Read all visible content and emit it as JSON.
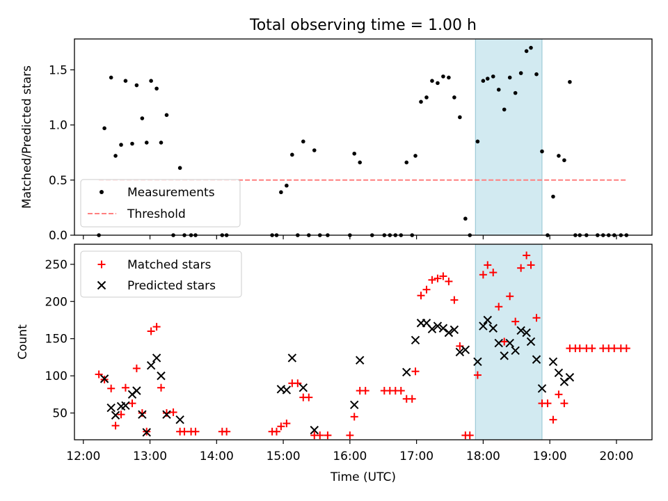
{
  "title": "Total observing time = 1.00 h",
  "colors": {
    "measurements": "#000000",
    "threshold": "#ff7f7f",
    "matched": "#ff0000",
    "predicted": "#000000",
    "window": "#add8e6"
  },
  "chart_data": [
    {
      "type": "scatter",
      "ylabel": "Matched/Predicted stars",
      "xlim": [
        "11:52",
        "20:32"
      ],
      "ylim": [
        0,
        1.78
      ],
      "yticks": [
        0.0,
        0.5,
        1.0,
        1.5
      ],
      "ytick_labels": [
        "0.0",
        "0.5",
        "1.0",
        "1.5"
      ],
      "highlight_span": [
        "17:53",
        "18:53"
      ],
      "legend": {
        "location": "lower-left",
        "entries": [
          "Measurements",
          "Threshold"
        ]
      },
      "series": [
        {
          "name": "Measurements",
          "marker": "dot",
          "points": [
            [
              "12:14",
              0.0
            ],
            [
              "12:19",
              0.97
            ],
            [
              "12:25",
              1.43
            ],
            [
              "12:29",
              0.72
            ],
            [
              "12:34",
              0.82
            ],
            [
              "12:38",
              1.4
            ],
            [
              "12:44",
              0.83
            ],
            [
              "12:48",
              1.36
            ],
            [
              "12:53",
              1.06
            ],
            [
              "12:57",
              0.84
            ],
            [
              "13:01",
              1.4
            ],
            [
              "13:06",
              1.33
            ],
            [
              "13:10",
              0.84
            ],
            [
              "13:15",
              1.09
            ],
            [
              "13:21",
              0.0
            ],
            [
              "13:27",
              0.61
            ],
            [
              "13:31",
              0.0
            ],
            [
              "13:37",
              0.0
            ],
            [
              "13:41",
              0.0
            ],
            [
              "14:05",
              0.0
            ],
            [
              "14:09",
              0.0
            ],
            [
              "14:50",
              0.0
            ],
            [
              "14:54",
              0.0
            ],
            [
              "14:58",
              0.39
            ],
            [
              "15:03",
              0.45
            ],
            [
              "15:08",
              0.73
            ],
            [
              "15:13",
              0.0
            ],
            [
              "15:18",
              0.85
            ],
            [
              "15:23",
              0.0
            ],
            [
              "15:28",
              0.77
            ],
            [
              "15:33",
              0.0
            ],
            [
              "15:40",
              0.0
            ],
            [
              "16:00",
              0.0
            ],
            [
              "16:04",
              0.74
            ],
            [
              "16:09",
              0.66
            ],
            [
              "16:20",
              0.0
            ],
            [
              "16:31",
              0.0
            ],
            [
              "16:36",
              0.0
            ],
            [
              "16:41",
              0.0
            ],
            [
              "16:46",
              0.0
            ],
            [
              "16:51",
              0.66
            ],
            [
              "16:56",
              0.0
            ],
            [
              "16:59",
              0.72
            ],
            [
              "17:04",
              1.21
            ],
            [
              "17:09",
              1.25
            ],
            [
              "17:14",
              1.4
            ],
            [
              "17:19",
              1.38
            ],
            [
              "17:24",
              1.44
            ],
            [
              "17:29",
              1.43
            ],
            [
              "17:34",
              1.25
            ],
            [
              "17:39",
              1.07
            ],
            [
              "17:44",
              0.15
            ],
            [
              "17:48",
              0.0
            ],
            [
              "17:55",
              0.85
            ],
            [
              "18:00",
              1.4
            ],
            [
              "18:04",
              1.42
            ],
            [
              "18:09",
              1.44
            ],
            [
              "18:14",
              1.32
            ],
            [
              "18:19",
              1.14
            ],
            [
              "18:24",
              1.43
            ],
            [
              "18:29",
              1.29
            ],
            [
              "18:34",
              1.47
            ],
            [
              "18:39",
              1.67
            ],
            [
              "18:43",
              1.7
            ],
            [
              "18:48",
              1.46
            ],
            [
              "18:53",
              0.76
            ],
            [
              "18:58",
              0.0
            ],
            [
              "19:03",
              0.35
            ],
            [
              "19:08",
              0.72
            ],
            [
              "19:13",
              0.68
            ],
            [
              "19:18",
              1.39
            ],
            [
              "19:23",
              0.0
            ],
            [
              "19:27",
              0.0
            ],
            [
              "19:33",
              0.0
            ],
            [
              "19:43",
              0.0
            ],
            [
              "19:48",
              0.0
            ],
            [
              "19:53",
              0.0
            ],
            [
              "19:58",
              0.0
            ],
            [
              "20:04",
              0.0
            ],
            [
              "20:09",
              0.0
            ]
          ]
        },
        {
          "name": "Threshold",
          "line_style": "dashed",
          "x": [
            "12:14",
            "20:09"
          ],
          "y": [
            0.5,
            0.5
          ]
        }
      ]
    },
    {
      "type": "scatter",
      "xlabel": "Time (UTC)",
      "ylabel": "Count",
      "xlim": [
        "11:52",
        "20:32"
      ],
      "ylim": [
        14,
        277
      ],
      "xticks": [
        "12:00",
        "13:00",
        "14:00",
        "15:00",
        "16:00",
        "17:00",
        "18:00",
        "19:00",
        "20:00"
      ],
      "yticks": [
        50,
        100,
        150,
        200,
        250
      ],
      "ytick_labels": [
        "50",
        "100",
        "150",
        "200",
        "250"
      ],
      "highlight_span": [
        "17:53",
        "18:53"
      ],
      "legend": {
        "location": "upper-left",
        "entries": [
          "Matched stars",
          "Predicted stars"
        ]
      },
      "series": [
        {
          "name": "Matched stars",
          "marker": "plus",
          "points": [
            [
              "12:14",
              102
            ],
            [
              "12:19",
              95
            ],
            [
              "12:25",
              83
            ],
            [
              "12:29",
              33
            ],
            [
              "12:34",
              48
            ],
            [
              "12:38",
              84
            ],
            [
              "12:44",
              63
            ],
            [
              "12:48",
              110
            ],
            [
              "12:53",
              50
            ],
            [
              "12:57",
              25
            ],
            [
              "13:01",
              160
            ],
            [
              "13:06",
              166
            ],
            [
              "13:10",
              84
            ],
            [
              "13:15",
              50
            ],
            [
              "13:21",
              51
            ],
            [
              "13:27",
              25
            ],
            [
              "13:31",
              25
            ],
            [
              "13:37",
              25
            ],
            [
              "13:41",
              25
            ],
            [
              "14:05",
              25
            ],
            [
              "14:09",
              25
            ],
            [
              "14:50",
              25
            ],
            [
              "14:54",
              25
            ],
            [
              "14:58",
              32
            ],
            [
              "15:03",
              36
            ],
            [
              "15:08",
              90
            ],
            [
              "15:13",
              90
            ],
            [
              "15:18",
              71
            ],
            [
              "15:23",
              71
            ],
            [
              "15:28",
              20
            ],
            [
              "15:33",
              20
            ],
            [
              "15:40",
              20
            ],
            [
              "16:00",
              20
            ],
            [
              "16:04",
              45
            ],
            [
              "16:09",
              80
            ],
            [
              "16:14",
              80
            ],
            [
              "16:31",
              80
            ],
            [
              "16:36",
              80
            ],
            [
              "16:41",
              80
            ],
            [
              "16:46",
              80
            ],
            [
              "16:51",
              69
            ],
            [
              "16:56",
              69
            ],
            [
              "16:59",
              106
            ],
            [
              "17:04",
              208
            ],
            [
              "17:09",
              216
            ],
            [
              "17:14",
              229
            ],
            [
              "17:19",
              231
            ],
            [
              "17:24",
              234
            ],
            [
              "17:29",
              227
            ],
            [
              "17:34",
              202
            ],
            [
              "17:39",
              140
            ],
            [
              "17:44",
              20
            ],
            [
              "17:48",
              20
            ],
            [
              "17:55",
              101
            ],
            [
              "18:00",
              236
            ],
            [
              "18:04",
              249
            ],
            [
              "18:09",
              239
            ],
            [
              "18:14",
              193
            ],
            [
              "18:19",
              146
            ],
            [
              "18:24",
              207
            ],
            [
              "18:29",
              173
            ],
            [
              "18:34",
              245
            ],
            [
              "18:39",
              262
            ],
            [
              "18:43",
              249
            ],
            [
              "18:48",
              178
            ],
            [
              "18:53",
              63
            ],
            [
              "18:58",
              63
            ],
            [
              "19:03",
              41
            ],
            [
              "19:08",
              75
            ],
            [
              "19:13",
              63
            ],
            [
              "19:18",
              137
            ],
            [
              "19:23",
              137
            ],
            [
              "19:27",
              137
            ],
            [
              "19:33",
              137
            ],
            [
              "19:38",
              137
            ],
            [
              "19:48",
              137
            ],
            [
              "19:53",
              137
            ],
            [
              "19:58",
              137
            ],
            [
              "20:04",
              137
            ],
            [
              "20:09",
              137
            ]
          ]
        },
        {
          "name": "Predicted stars",
          "marker": "x",
          "points": [
            [
              "12:19",
              96
            ],
            [
              "12:25",
              57
            ],
            [
              "12:29",
              47
            ],
            [
              "12:34",
              59
            ],
            [
              "12:38",
              60
            ],
            [
              "12:44",
              75
            ],
            [
              "12:48",
              80
            ],
            [
              "12:53",
              48
            ],
            [
              "12:57",
              24
            ],
            [
              "13:01",
              114
            ],
            [
              "13:06",
              124
            ],
            [
              "13:10",
              100
            ],
            [
              "13:15",
              48
            ],
            [
              "13:27",
              41
            ],
            [
              "14:58",
              82
            ],
            [
              "15:03",
              81
            ],
            [
              "15:08",
              124
            ],
            [
              "15:18",
              84
            ],
            [
              "15:28",
              27
            ],
            [
              "16:04",
              61
            ],
            [
              "16:09",
              121
            ],
            [
              "16:51",
              105
            ],
            [
              "16:59",
              148
            ],
            [
              "17:04",
              171
            ],
            [
              "17:09",
              171
            ],
            [
              "17:14",
              163
            ],
            [
              "17:19",
              167
            ],
            [
              "17:24",
              164
            ],
            [
              "17:29",
              158
            ],
            [
              "17:34",
              162
            ],
            [
              "17:39",
              132
            ],
            [
              "17:44",
              135
            ],
            [
              "17:55",
              119
            ],
            [
              "18:00",
              167
            ],
            [
              "18:04",
              175
            ],
            [
              "18:09",
              164
            ],
            [
              "18:14",
              144
            ],
            [
              "18:19",
              127
            ],
            [
              "18:24",
              144
            ],
            [
              "18:29",
              134
            ],
            [
              "18:34",
              161
            ],
            [
              "18:39",
              158
            ],
            [
              "18:43",
              146
            ],
            [
              "18:48",
              122
            ],
            [
              "18:53",
              83
            ],
            [
              "19:03",
              119
            ],
            [
              "19:08",
              104
            ],
            [
              "19:13",
              92
            ],
            [
              "19:18",
              98
            ]
          ]
        }
      ]
    }
  ]
}
